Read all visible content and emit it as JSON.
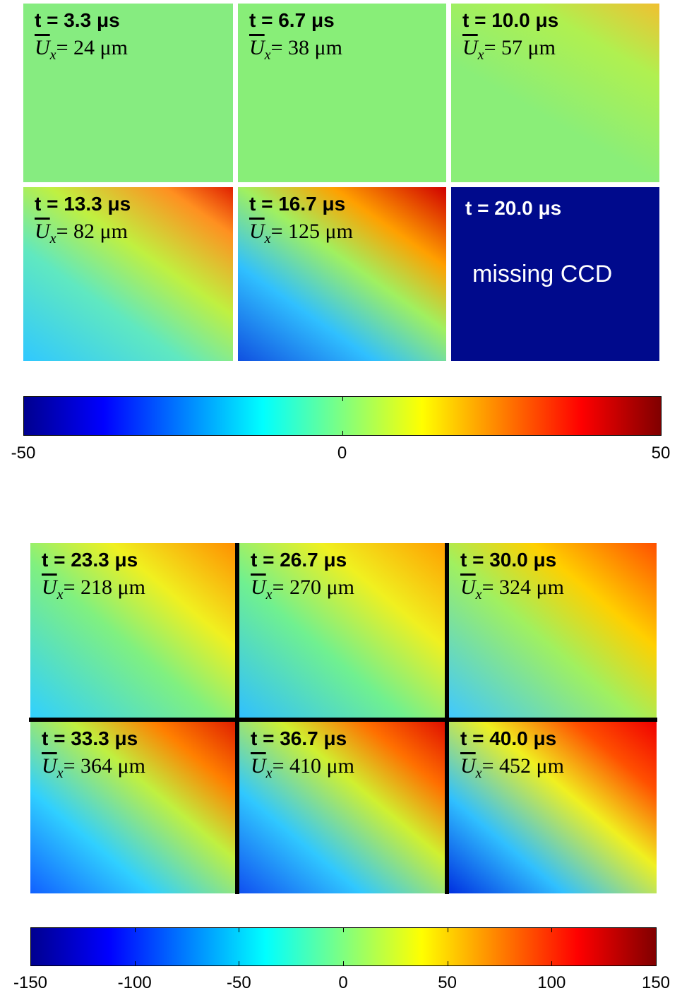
{
  "panel_groups": [
    {
      "panels": [
        {
          "time": "t = 3.3 μs",
          "mean": {
            "symbol": "U",
            "subscript": "x",
            "text": "= 24 μm"
          }
        },
        {
          "time": "t = 6.7 μs",
          "mean": {
            "symbol": "U",
            "subscript": "x",
            "text": "= 38 μm"
          }
        },
        {
          "time": "t = 10.0 μs",
          "mean": {
            "symbol": "U",
            "subscript": "x",
            "text": "= 57 μm"
          }
        },
        {
          "time": "t = 13.3 μs",
          "mean": {
            "symbol": "U",
            "subscript": "x",
            "text": "= 82 μm"
          }
        },
        {
          "time": "t = 16.7 μs",
          "mean": {
            "symbol": "U",
            "subscript": "x",
            "text": "= 125 μm"
          }
        },
        {
          "time": "t = 20.0 μs",
          "note": "missing CCD"
        }
      ],
      "colorbar": {
        "lim": [
          -50,
          50
        ],
        "ticks": [
          -50,
          0,
          50
        ]
      }
    },
    {
      "panels": [
        {
          "time": "t = 23.3 μs",
          "mean": {
            "symbol": "U",
            "subscript": "x",
            "text": "= 218 μm"
          }
        },
        {
          "time": "t = 26.7 μs",
          "mean": {
            "symbol": "U",
            "subscript": "x",
            "text": "= 270 μm"
          }
        },
        {
          "time": "t = 30.0 μs",
          "mean": {
            "symbol": "U",
            "subscript": "x",
            "text": "= 324 μm"
          }
        },
        {
          "time": "t = 33.3 μs",
          "mean": {
            "symbol": "U",
            "subscript": "x",
            "text": "= 364 μm"
          }
        },
        {
          "time": "t = 36.7 μs",
          "mean": {
            "symbol": "U",
            "subscript": "x",
            "text": "= 410 μm"
          }
        },
        {
          "time": "t = 40.0 μs",
          "mean": {
            "symbol": "U",
            "subscript": "x",
            "text": "= 452 μm"
          }
        }
      ],
      "colorbar": {
        "lim": [
          -150,
          150
        ],
        "ticks": [
          -150,
          -100,
          -50,
          0,
          50,
          100,
          150
        ]
      }
    }
  ]
}
